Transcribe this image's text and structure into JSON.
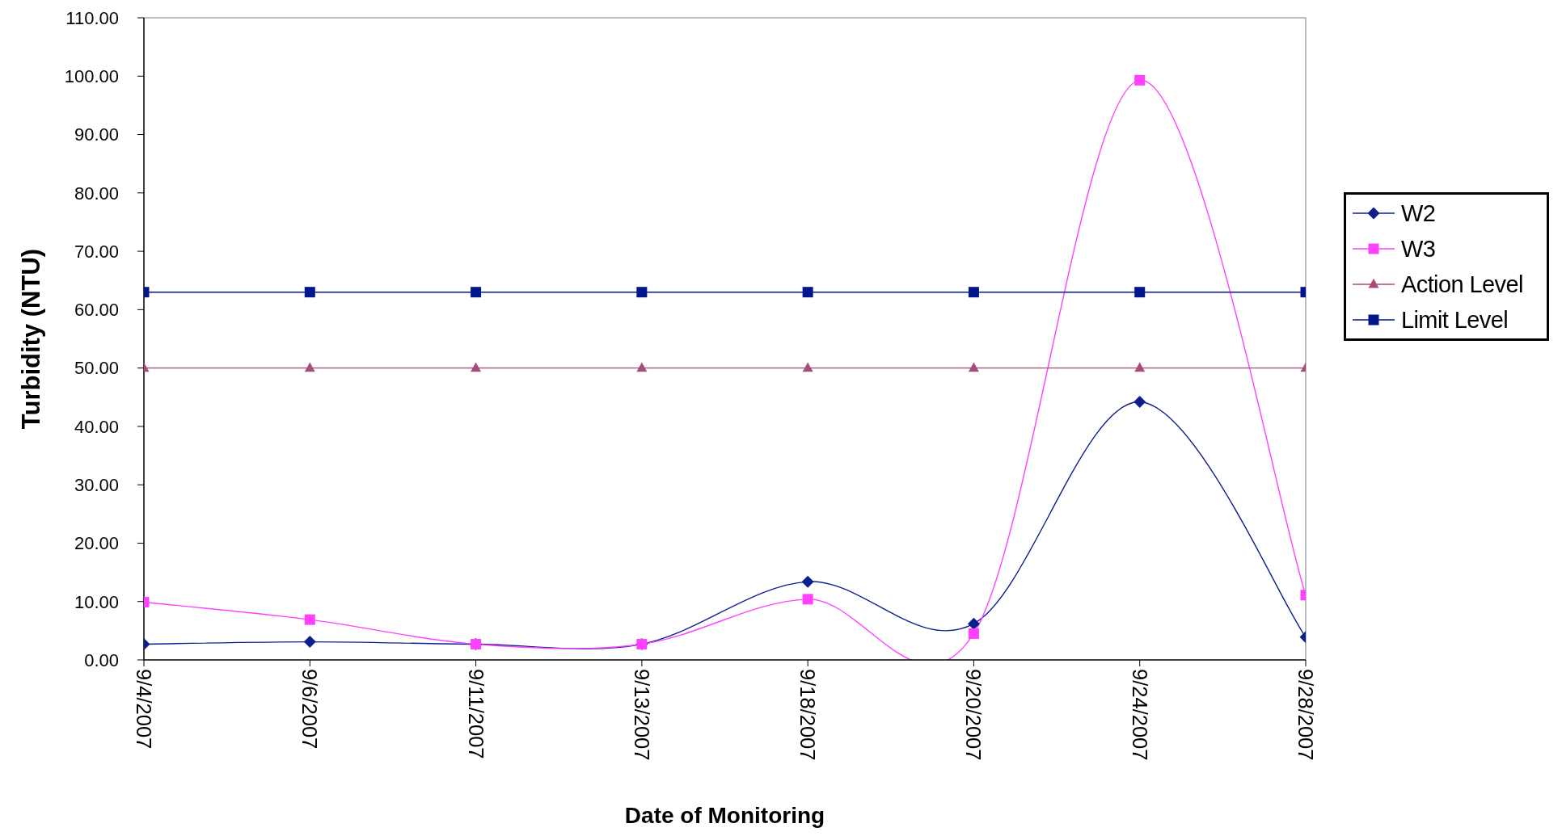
{
  "chart_data": {
    "type": "line",
    "xlabel": "Date of Monitoring",
    "ylabel": "Turbidity (NTU)",
    "categories": [
      "9/4/2007",
      "9/6/2007",
      "9/11/2007",
      "9/13/2007",
      "9/18/2007",
      "9/20/2007",
      "9/24/2007",
      "9/28/2007"
    ],
    "series": [
      {
        "name": "W2",
        "color": "#0d1f8f",
        "marker": "diamond",
        "values": [
          2.7,
          3.1,
          2.7,
          2.7,
          13.4,
          6.2,
          44.2,
          3.9
        ]
      },
      {
        "name": "W3",
        "color": "#ff40ff",
        "marker": "square",
        "values": [
          9.9,
          6.9,
          2.7,
          2.7,
          10.4,
          4.5,
          99.3,
          11.1
        ]
      },
      {
        "name": "Action Level",
        "color": "#a64d79",
        "marker": "triangle",
        "values": [
          50,
          50,
          50,
          50,
          50,
          50,
          50,
          50
        ]
      },
      {
        "name": "Limit Level",
        "color": "#00168c",
        "marker": "square",
        "values": [
          63,
          63,
          63,
          63,
          63,
          63,
          63,
          63
        ]
      }
    ],
    "ylim": [
      0,
      110
    ],
    "yticks": [
      {
        "value": 0,
        "label": "0.00"
      },
      {
        "value": 10,
        "label": "10.00"
      },
      {
        "value": 20,
        "label": "20.00"
      },
      {
        "value": 30,
        "label": "30.00"
      },
      {
        "value": 40,
        "label": "40.00"
      },
      {
        "value": 50,
        "label": "50.00"
      },
      {
        "value": 60,
        "label": "60.00"
      },
      {
        "value": 70,
        "label": "70.00"
      },
      {
        "value": 80,
        "label": "80.00"
      },
      {
        "value": 90,
        "label": "90.00"
      },
      {
        "value": 100,
        "label": "100.00"
      },
      {
        "value": 110,
        "label": "110.00"
      }
    ],
    "grid": false,
    "legend": "right"
  }
}
